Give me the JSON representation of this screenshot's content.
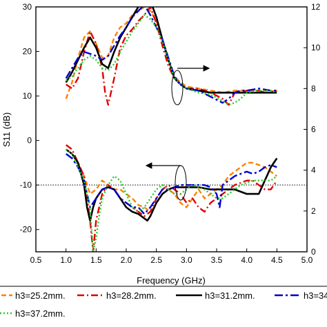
{
  "chart_data": {
    "type": "line",
    "xlabel": "Frequency (GHz)",
    "ylabel_left": "S11 (dB)",
    "ylabel_right": "",
    "xlim": [
      0.5,
      5.0
    ],
    "ylim_left": [
      -25,
      30
    ],
    "ylim_right": [
      0,
      12
    ],
    "x_ticks": [
      "0.5",
      "1.0",
      "1.5",
      "2.0",
      "2.5",
      "3.0",
      "3.5",
      "4.0",
      "4.5",
      "5.0"
    ],
    "y_ticks_left": [
      "-20",
      "-10",
      "0",
      "10",
      "20",
      "30"
    ],
    "y_ticks_right": [
      "0",
      "2",
      "4",
      "6",
      "8",
      "10",
      "12"
    ],
    "reference_line_db": -10,
    "colors": {
      "h25": "#ff8000",
      "h28": "#e00000",
      "h31": "#000000",
      "h34": "#0000cc",
      "h37": "#22cc22"
    },
    "legend": [
      {
        "key": "h25",
        "label": "h3=25.2mm."
      },
      {
        "key": "h28",
        "label": "h3=28.2mm."
      },
      {
        "key": "h31",
        "label": "h3=31.2mm."
      },
      {
        "key": "h34",
        "label": "h3=34"
      },
      {
        "key": "h37",
        "label": "h3=37.2mm."
      }
    ],
    "s11_series": [
      {
        "key": "h25",
        "x": [
          1.0,
          1.1,
          1.2,
          1.3,
          1.4,
          1.5,
          1.6,
          1.7,
          1.8,
          1.9,
          2.0,
          2.1,
          2.2,
          2.3,
          2.4,
          2.5,
          2.6,
          2.7,
          2.8,
          2.9,
          3.0,
          3.1,
          3.2,
          3.3,
          3.4,
          3.5,
          3.6,
          3.7,
          3.8,
          3.9,
          4.0,
          4.1,
          4.2,
          4.3,
          4.4,
          4.5
        ],
        "y": [
          -2,
          -3,
          -5,
          -8,
          -12,
          -11,
          -9,
          -10,
          -11,
          -11,
          -12,
          -13,
          -14.5,
          -15,
          -16,
          -14,
          -12,
          -11,
          -12,
          -14,
          -15,
          -13,
          -11,
          -13,
          -12,
          -11,
          -10,
          -8,
          -7,
          -6,
          -5,
          -5,
          -5.5,
          -6,
          -7,
          -8
        ]
      },
      {
        "key": "h28",
        "x": [
          1.0,
          1.1,
          1.2,
          1.3,
          1.4,
          1.45,
          1.5,
          1.6,
          1.7,
          1.8,
          1.9,
          2.0,
          2.1,
          2.2,
          2.3,
          2.4,
          2.5,
          2.6,
          2.7,
          2.8,
          2.9,
          3.0,
          3.1,
          3.2,
          3.3,
          3.4,
          3.5,
          3.6,
          3.7,
          3.8,
          3.9,
          4.0,
          4.1,
          4.2,
          4.3,
          4.4,
          4.5
        ],
        "y": [
          -1,
          -2,
          -5,
          -8,
          -18,
          -25,
          -18,
          -12,
          -10,
          -11,
          -13,
          -14,
          -15,
          -16,
          -17,
          -16,
          -13,
          -11,
          -10,
          -11,
          -12,
          -14,
          -13,
          -15,
          -16,
          -14,
          -13,
          -12,
          -11,
          -10,
          -9.5,
          -9,
          -9,
          -10,
          -11,
          -11,
          -9
        ]
      },
      {
        "key": "h31",
        "x": [
          1.0,
          1.1,
          1.2,
          1.3,
          1.35,
          1.4,
          1.45,
          1.5,
          1.6,
          1.7,
          1.8,
          1.9,
          2.0,
          2.1,
          2.2,
          2.3,
          2.35,
          2.4,
          2.5,
          2.6,
          2.7,
          2.8,
          2.9,
          3.0,
          3.2,
          3.4,
          3.6,
          3.8,
          4.0,
          4.2,
          4.3,
          4.4,
          4.5
        ],
        "y": [
          -2,
          -3,
          -5,
          -10,
          -15,
          -18,
          -15,
          -13,
          -11,
          -10.5,
          -11,
          -13,
          -15,
          -16,
          -16.5,
          -17.5,
          -18,
          -17,
          -14,
          -12,
          -11,
          -10.5,
          -10.5,
          -10.5,
          -10.5,
          -11,
          -11,
          -11,
          -12,
          -12,
          -9,
          -6,
          -4
        ]
      },
      {
        "key": "h34",
        "x": [
          1.0,
          1.1,
          1.2,
          1.3,
          1.4,
          1.5,
          1.6,
          1.7,
          1.8,
          1.9,
          2.0,
          2.1,
          2.2,
          2.3,
          2.4,
          2.5,
          2.6,
          2.7,
          2.8,
          2.9,
          3.0,
          3.1,
          3.2,
          3.3,
          3.4,
          3.5,
          3.55,
          3.6,
          3.7,
          3.8,
          3.9,
          4.0,
          4.1,
          4.2,
          4.3,
          4.4,
          4.5
        ],
        "y": [
          -3,
          -4,
          -6,
          -9,
          -15,
          -13,
          -11,
          -10.5,
          -11,
          -13,
          -14,
          -15,
          -15,
          -16.5,
          -15,
          -13,
          -11,
          -11,
          -10.5,
          -10,
          -10,
          -10,
          -10,
          -10,
          -10.5,
          -12,
          -15,
          -10,
          -9,
          -8,
          -7.5,
          -7,
          -7.5,
          -7,
          -6,
          -5.5,
          -6
        ]
      },
      {
        "key": "h37",
        "x": [
          1.0,
          1.1,
          1.2,
          1.3,
          1.4,
          1.45,
          1.5,
          1.55,
          1.6,
          1.7,
          1.8,
          1.9,
          2.0,
          2.1,
          2.2,
          2.3,
          2.4,
          2.5,
          2.6,
          2.7,
          2.8,
          2.9,
          3.0,
          3.1,
          3.2,
          3.3,
          3.4,
          3.5,
          3.6,
          3.7,
          3.8,
          3.9,
          4.0,
          4.1,
          4.2,
          4.3,
          4.4,
          4.5
        ],
        "y": [
          -2,
          -3,
          -6,
          -9,
          -15,
          -25,
          -22,
          -17,
          -13,
          -10,
          -8,
          -9,
          -12,
          -15,
          -16,
          -15,
          -13,
          -11,
          -10,
          -11,
          -12,
          -12,
          -11,
          -10,
          -10.5,
          -11,
          -12,
          -13,
          -13,
          -12,
          -11,
          -10,
          -9.5,
          -9,
          -9,
          -9,
          -9,
          -8
        ]
      }
    ],
    "right_series": [
      {
        "key": "h25",
        "x": [
          1.0,
          1.1,
          1.2,
          1.3,
          1.4,
          1.5,
          1.6,
          1.7,
          1.8,
          1.9,
          2.0,
          2.1,
          2.2,
          2.3,
          2.4,
          2.5,
          2.6,
          2.7,
          2.8,
          2.9,
          3.0,
          3.2,
          3.4,
          3.6,
          3.8,
          4.0,
          4.2,
          4.4,
          4.5
        ],
        "y": [
          7.5,
          8.3,
          9.5,
          10.5,
          10.8,
          10.2,
          9.5,
          9.6,
          10.5,
          11.0,
          11.2,
          11.6,
          11.8,
          12.0,
          11.8,
          11.3,
          10.4,
          9.4,
          8.6,
          8.3,
          8.1,
          8.0,
          7.9,
          7.8,
          7.9,
          7.9,
          7.9,
          7.9,
          7.8
        ]
      },
      {
        "key": "h28",
        "x": [
          1.0,
          1.1,
          1.2,
          1.3,
          1.4,
          1.5,
          1.6,
          1.65,
          1.7,
          1.8,
          1.9,
          2.0,
          2.1,
          2.2,
          2.3,
          2.4,
          2.5,
          2.6,
          2.7,
          2.8,
          2.9,
          3.0,
          3.2,
          3.4,
          3.6,
          3.7,
          3.8,
          3.9,
          4.0,
          4.2,
          4.3,
          4.4,
          4.5
        ],
        "y": [
          8.2,
          8.0,
          8.5,
          9.8,
          10.8,
          10.2,
          9.0,
          7.8,
          7.2,
          8.5,
          10.0,
          10.6,
          10.9,
          11.3,
          11.6,
          12.0,
          11.2,
          10.1,
          9.1,
          8.5,
          8.2,
          8.0,
          8.0,
          7.8,
          7.5,
          7.2,
          7.8,
          7.8,
          7.9,
          7.9,
          7.8,
          7.8,
          7.9
        ]
      },
      {
        "key": "h31",
        "x": [
          1.0,
          1.1,
          1.2,
          1.3,
          1.4,
          1.5,
          1.6,
          1.7,
          1.8,
          1.9,
          2.0,
          2.1,
          2.2,
          2.3,
          2.4,
          2.5,
          2.6,
          2.7,
          2.8,
          2.9,
          3.0,
          3.2,
          3.4,
          3.6,
          3.8,
          4.0,
          4.2,
          4.4,
          4.5
        ],
        "y": [
          8.3,
          8.8,
          9.4,
          10.0,
          10.5,
          10.0,
          9.2,
          9.0,
          9.8,
          10.5,
          11.0,
          11.5,
          12.0,
          12.3,
          12.3,
          11.5,
          10.4,
          9.4,
          8.5,
          8.2,
          8.0,
          7.9,
          7.8,
          7.8,
          7.8,
          7.8,
          7.8,
          7.8,
          7.8
        ]
      },
      {
        "key": "h34",
        "x": [
          1.0,
          1.1,
          1.2,
          1.3,
          1.4,
          1.5,
          1.6,
          1.7,
          1.8,
          1.9,
          2.0,
          2.1,
          2.2,
          2.3,
          2.4,
          2.5,
          2.6,
          2.7,
          2.8,
          2.9,
          3.0,
          3.2,
          3.4,
          3.6,
          3.7,
          3.8,
          3.9,
          4.0,
          4.2,
          4.4,
          4.5
        ],
        "y": [
          8.5,
          9.0,
          9.5,
          9.8,
          9.7,
          9.6,
          9.4,
          9.6,
          10.1,
          10.6,
          11.0,
          11.5,
          11.8,
          12.1,
          11.6,
          11.0,
          10.4,
          9.5,
          8.6,
          8.2,
          8.0,
          7.9,
          7.6,
          7.3,
          7.5,
          7.8,
          7.9,
          7.9,
          8.0,
          7.9,
          7.9
        ]
      },
      {
        "key": "h37",
        "x": [
          1.0,
          1.1,
          1.2,
          1.3,
          1.4,
          1.5,
          1.6,
          1.7,
          1.8,
          1.9,
          2.0,
          2.1,
          2.2,
          2.3,
          2.4,
          2.5,
          2.6,
          2.7,
          2.8,
          2.9,
          3.0,
          3.2,
          3.4,
          3.6,
          3.7,
          3.8,
          3.9,
          4.0,
          4.2,
          4.4,
          4.5
        ],
        "y": [
          8.4,
          8.6,
          9.0,
          9.4,
          9.6,
          9.4,
          9.0,
          8.9,
          9.2,
          9.8,
          10.3,
          10.8,
          11.2,
          11.6,
          11.4,
          11.0,
          10.3,
          9.4,
          8.5,
          8.2,
          8.0,
          7.8,
          7.7,
          7.4,
          7.2,
          7.3,
          7.5,
          7.8,
          7.9,
          7.9,
          7.8
        ]
      }
    ]
  }
}
